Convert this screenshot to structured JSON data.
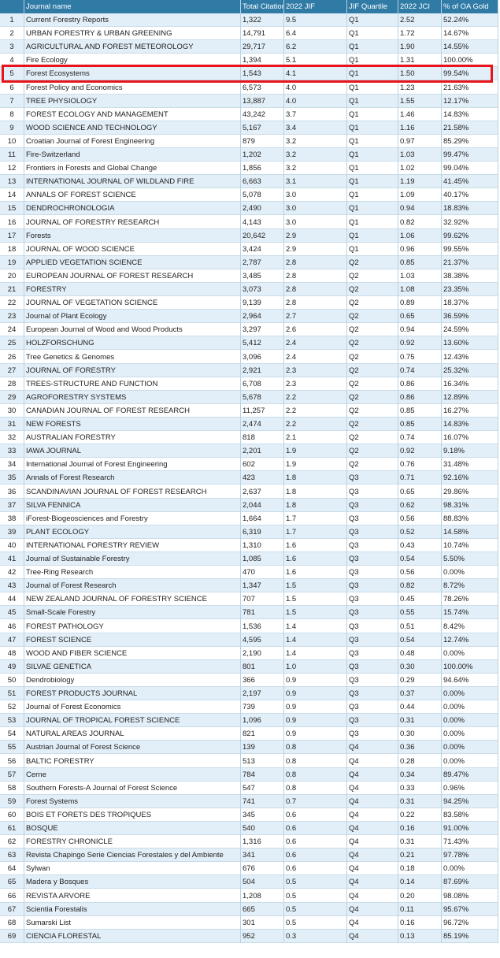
{
  "table": {
    "header": [
      "Journal name",
      "Total Citations",
      "2022 JIF",
      "JIF Quartile",
      "2022 JCI",
      "% of OA Gold"
    ],
    "rows": [
      [
        "1",
        "Current Forestry Reports",
        "1,322",
        "9.5",
        "Q1",
        "2.52",
        "52.24%"
      ],
      [
        "2",
        "URBAN FORESTRY & URBAN GREENING",
        "14,791",
        "6.4",
        "Q1",
        "1.72",
        "14.67%"
      ],
      [
        "3",
        "AGRICULTURAL AND FOREST METEOROLOGY",
        "29,717",
        "6.2",
        "Q1",
        "1.90",
        "14.55%"
      ],
      [
        "4",
        "Fire Ecology",
        "1,394",
        "5.1",
        "Q1",
        "1.31",
        "100.00%"
      ],
      [
        "5",
        "Forest Ecosystems",
        "1,543",
        "4.1",
        "Q1",
        "1.50",
        "99.54%"
      ],
      [
        "6",
        "Forest Policy and Economics",
        "6,573",
        "4.0",
        "Q1",
        "1.23",
        "21.63%"
      ],
      [
        "7",
        "TREE PHYSIOLOGY",
        "13,887",
        "4.0",
        "Q1",
        "1.55",
        "12.17%"
      ],
      [
        "8",
        "FOREST ECOLOGY AND MANAGEMENT",
        "43,242",
        "3.7",
        "Q1",
        "1.46",
        "14.83%"
      ],
      [
        "9",
        "WOOD SCIENCE AND TECHNOLOGY",
        "5,167",
        "3.4",
        "Q1",
        "1.16",
        "21.58%"
      ],
      [
        "10",
        "Croatian Journal of Forest Engineering",
        "879",
        "3.2",
        "Q1",
        "0.97",
        "85.29%"
      ],
      [
        "11",
        "Fire-Switzerland",
        "1,202",
        "3.2",
        "Q1",
        "1.03",
        "99.47%"
      ],
      [
        "12",
        "Frontiers in Forests and Global Change",
        "1,856",
        "3.2",
        "Q1",
        "1.02",
        "99.04%"
      ],
      [
        "13",
        "INTERNATIONAL JOURNAL OF WILDLAND FIRE",
        "6,663",
        "3.1",
        "Q1",
        "1.19",
        "41.45%"
      ],
      [
        "14",
        "ANNALS OF FOREST SCIENCE",
        "5,078",
        "3.0",
        "Q1",
        "1.09",
        "40.17%"
      ],
      [
        "15",
        "DENDROCHRONOLOGIA",
        "2,490",
        "3.0",
        "Q1",
        "0.94",
        "18.83%"
      ],
      [
        "16",
        "JOURNAL OF FORESTRY RESEARCH",
        "4,143",
        "3.0",
        "Q1",
        "0.82",
        "32.92%"
      ],
      [
        "17",
        "Forests",
        "20,642",
        "2.9",
        "Q1",
        "1.06",
        "99.62%"
      ],
      [
        "18",
        "JOURNAL OF WOOD SCIENCE",
        "3,424",
        "2.9",
        "Q1",
        "0.96",
        "99.55%"
      ],
      [
        "19",
        "APPLIED VEGETATION SCIENCE",
        "2,787",
        "2.8",
        "Q2",
        "0.85",
        "21.37%"
      ],
      [
        "20",
        "EUROPEAN JOURNAL OF FOREST RESEARCH",
        "3,485",
        "2.8",
        "Q2",
        "1.03",
        "38.38%"
      ],
      [
        "21",
        "FORESTRY",
        "3,073",
        "2.8",
        "Q2",
        "1.08",
        "23.35%"
      ],
      [
        "22",
        "JOURNAL OF VEGETATION SCIENCE",
        "9,139",
        "2.8",
        "Q2",
        "0.89",
        "18.37%"
      ],
      [
        "23",
        "Journal of Plant Ecology",
        "2,964",
        "2.7",
        "Q2",
        "0.65",
        "36.59%"
      ],
      [
        "24",
        "European Journal of Wood and Wood Products",
        "3,297",
        "2.6",
        "Q2",
        "0.94",
        "24.59%"
      ],
      [
        "25",
        "HOLZFORSCHUNG",
        "5,412",
        "2.4",
        "Q2",
        "0.92",
        "13.60%"
      ],
      [
        "26",
        "Tree Genetics & Genomes",
        "3,096",
        "2.4",
        "Q2",
        "0.75",
        "12.43%"
      ],
      [
        "27",
        "JOURNAL OF FORESTRY",
        "2,921",
        "2.3",
        "Q2",
        "0.74",
        "25.32%"
      ],
      [
        "28",
        "TREES-STRUCTURE AND FUNCTION",
        "6,708",
        "2.3",
        "Q2",
        "0.86",
        "16.34%"
      ],
      [
        "29",
        "AGROFORESTRY SYSTEMS",
        "5,678",
        "2.2",
        "Q2",
        "0.86",
        "12.89%"
      ],
      [
        "30",
        "CANADIAN JOURNAL OF FOREST RESEARCH",
        "11,257",
        "2.2",
        "Q2",
        "0.85",
        "16.27%"
      ],
      [
        "31",
        "NEW FORESTS",
        "2,474",
        "2.2",
        "Q2",
        "0.85",
        "14.83%"
      ],
      [
        "32",
        "AUSTRALIAN FORESTRY",
        "818",
        "2.1",
        "Q2",
        "0.74",
        "16.07%"
      ],
      [
        "33",
        "IAWA JOURNAL",
        "2,201",
        "1.9",
        "Q2",
        "0.92",
        "9.18%"
      ],
      [
        "34",
        "International Journal of Forest Engineering",
        "602",
        "1.9",
        "Q2",
        "0.76",
        "31.48%"
      ],
      [
        "35",
        "Annals of Forest Research",
        "423",
        "1.8",
        "Q3",
        "0.71",
        "92.16%"
      ],
      [
        "36",
        "SCANDINAVIAN JOURNAL OF FOREST RESEARCH",
        "2,637",
        "1.8",
        "Q3",
        "0.65",
        "29.86%"
      ],
      [
        "37",
        "SILVA FENNICA",
        "2,044",
        "1.8",
        "Q3",
        "0.62",
        "98.31%"
      ],
      [
        "38",
        "iForest-Biogeosciences and Forestry",
        "1,664",
        "1.7",
        "Q3",
        "0.56",
        "88.83%"
      ],
      [
        "39",
        "PLANT ECOLOGY",
        "6,319",
        "1.7",
        "Q3",
        "0.52",
        "14.58%"
      ],
      [
        "40",
        "INTERNATIONAL FORESTRY REVIEW",
        "1,310",
        "1.6",
        "Q3",
        "0.43",
        "10.74%"
      ],
      [
        "41",
        "Journal of Sustainable Forestry",
        "1,085",
        "1.6",
        "Q3",
        "0.54",
        "5.50%"
      ],
      [
        "42",
        "Tree-Ring Research",
        "470",
        "1.6",
        "Q3",
        "0.56",
        "0.00%"
      ],
      [
        "43",
        "Journal of Forest Research",
        "1,347",
        "1.5",
        "Q3",
        "0.82",
        "8.72%"
      ],
      [
        "44",
        "NEW ZEALAND JOURNAL OF FORESTRY SCIENCE",
        "707",
        "1.5",
        "Q3",
        "0.45",
        "78.26%"
      ],
      [
        "45",
        "Small-Scale Forestry",
        "781",
        "1.5",
        "Q3",
        "0.55",
        "15.74%"
      ],
      [
        "46",
        "FOREST PATHOLOGY",
        "1,536",
        "1.4",
        "Q3",
        "0.51",
        "8.42%"
      ],
      [
        "47",
        "FOREST SCIENCE",
        "4,595",
        "1.4",
        "Q3",
        "0.54",
        "12.74%"
      ],
      [
        "48",
        "WOOD AND FIBER SCIENCE",
        "2,190",
        "1.4",
        "Q3",
        "0.48",
        "0.00%"
      ],
      [
        "49",
        "SILVAE GENETICA",
        "801",
        "1.0",
        "Q3",
        "0.30",
        "100.00%"
      ],
      [
        "50",
        "Dendrobiology",
        "366",
        "0.9",
        "Q3",
        "0.29",
        "94.64%"
      ],
      [
        "51",
        "FOREST PRODUCTS JOURNAL",
        "2,197",
        "0.9",
        "Q3",
        "0.37",
        "0.00%"
      ],
      [
        "52",
        "Journal of Forest Economics",
        "739",
        "0.9",
        "Q3",
        "0.44",
        "0.00%"
      ],
      [
        "53",
        "JOURNAL OF TROPICAL FOREST SCIENCE",
        "1,096",
        "0.9",
        "Q3",
        "0.31",
        "0.00%"
      ],
      [
        "54",
        "NATURAL AREAS JOURNAL",
        "821",
        "0.9",
        "Q3",
        "0.30",
        "0.00%"
      ],
      [
        "55",
        "Austrian Journal of Forest Science",
        "139",
        "0.8",
        "Q4",
        "0.36",
        "0.00%"
      ],
      [
        "56",
        "BALTIC FORESTRY",
        "513",
        "0.8",
        "Q4",
        "0.28",
        "0.00%"
      ],
      [
        "57",
        "Cerne",
        "784",
        "0.8",
        "Q4",
        "0.34",
        "89.47%"
      ],
      [
        "58",
        "Southern Forests-A Journal of Forest Science",
        "547",
        "0.8",
        "Q4",
        "0.33",
        "0.96%"
      ],
      [
        "59",
        "Forest Systems",
        "741",
        "0.7",
        "Q4",
        "0.31",
        "94.25%"
      ],
      [
        "60",
        "BOIS ET FORETS DES TROPIQUES",
        "345",
        "0.6",
        "Q4",
        "0.22",
        "83.58%"
      ],
      [
        "61",
        "BOSQUE",
        "540",
        "0.6",
        "Q4",
        "0.16",
        "91.00%"
      ],
      [
        "62",
        "FORESTRY CHRONICLE",
        "1,316",
        "0.6",
        "Q4",
        "0.31",
        "71.43%"
      ],
      [
        "63",
        "Revista Chapingo Serie Ciencias Forestales y del Ambiente",
        "341",
        "0.6",
        "Q4",
        "0.21",
        "97.78%"
      ],
      [
        "64",
        "Sylwan",
        "676",
        "0.6",
        "Q4",
        "0.18",
        "0.00%"
      ],
      [
        "65",
        "Madera y Bosques",
        "504",
        "0.5",
        "Q4",
        "0.14",
        "87.69%"
      ],
      [
        "66",
        "REVISTA ARVORE",
        "1,208",
        "0.5",
        "Q4",
        "0.20",
        "98.08%"
      ],
      [
        "67",
        "Scientia Forestalis",
        "665",
        "0.5",
        "Q4",
        "0.11",
        "95.67%"
      ],
      [
        "68",
        "Sumarski List",
        "301",
        "0.5",
        "Q4",
        "0.16",
        "96.72%"
      ],
      [
        "69",
        "CIENCIA FLORESTAL",
        "952",
        "0.3",
        "Q4",
        "0.13",
        "85.19%"
      ]
    ]
  }
}
